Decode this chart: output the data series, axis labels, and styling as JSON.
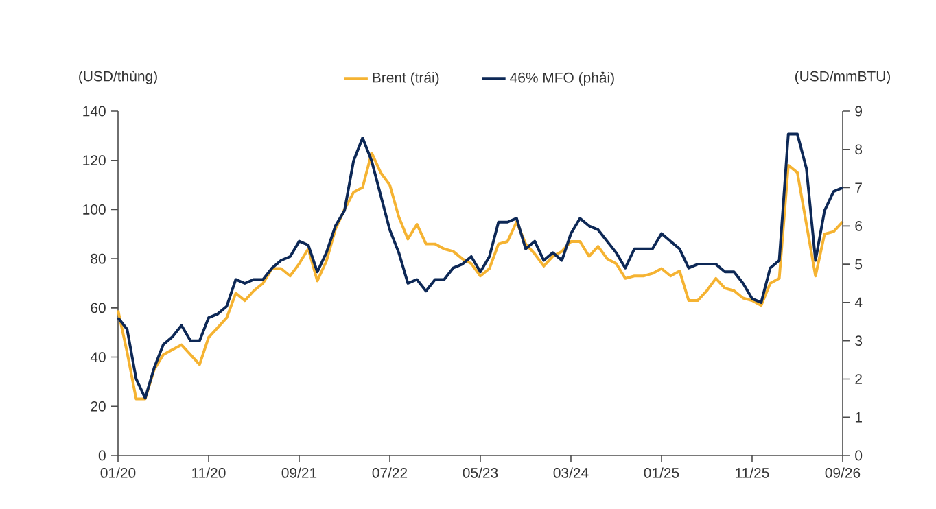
{
  "chart_data": {
    "type": "line",
    "ylabel": "(USD/thùng)",
    "y2label": "(USD/mmBTU)",
    "legend": "top",
    "x": [
      "2020-01",
      "2020-02",
      "2020-03",
      "2020-04",
      "2020-05",
      "2020-06",
      "2020-07",
      "2020-08",
      "2020-09",
      "2020-10",
      "2020-11",
      "2020-12",
      "2021-01",
      "2021-02",
      "2021-03",
      "2021-04",
      "2021-05",
      "2021-06",
      "2021-07",
      "2021-08",
      "2021-09",
      "2021-10",
      "2021-11",
      "2021-12",
      "2022-01",
      "2022-02",
      "2022-03",
      "2022-04",
      "2022-05",
      "2022-06",
      "2022-07",
      "2022-08",
      "2022-09",
      "2022-10",
      "2022-11",
      "2022-12",
      "2023-01",
      "2023-02",
      "2023-03",
      "2023-04",
      "2023-05",
      "2023-06",
      "2023-07",
      "2023-08",
      "2023-09",
      "2023-10",
      "2023-11",
      "2023-12",
      "2024-01",
      "2024-02",
      "2024-03",
      "2024-04",
      "2024-05",
      "2024-06",
      "2024-07",
      "2024-08",
      "2024-09",
      "2024-10",
      "2024-11",
      "2024-12",
      "2025-01",
      "2025-02",
      "2025-03",
      "2025-04",
      "2025-05",
      "2025-06",
      "2025-07",
      "2025-08",
      "2025-09",
      "2025-10",
      "2025-11",
      "2025-12",
      "2026-01",
      "2026-02",
      "2026-03",
      "2026-04",
      "2026-05",
      "2026-06",
      "2026-07",
      "2026-08",
      "2026-09"
    ],
    "series": [
      {
        "name": "Brent (trái)",
        "color": "#f5b332",
        "values": [
          59,
          42,
          23,
          23,
          35,
          41,
          43,
          45,
          41,
          37,
          48,
          52,
          56,
          66,
          63,
          67,
          70,
          76,
          76,
          73,
          78,
          84,
          71,
          79,
          92,
          100,
          107,
          109,
          123,
          115,
          110,
          97,
          88,
          94,
          86,
          86,
          84,
          83,
          80,
          78,
          73,
          76,
          86,
          87,
          95,
          86,
          82,
          77,
          81,
          83,
          87,
          87,
          81,
          85,
          80,
          78,
          72,
          73,
          73,
          74,
          76,
          73,
          75,
          63,
          63,
          67,
          72,
          68,
          67,
          64,
          63,
          61,
          70,
          72,
          118,
          115,
          94,
          73,
          90,
          91,
          95
        ]
      },
      {
        "name": "46% MFO (phải)",
        "color": "#0d2856",
        "axis": "y2",
        "values": [
          3.6,
          3.3,
          2.0,
          1.5,
          2.3,
          2.9,
          3.1,
          3.4,
          3.0,
          3.0,
          3.6,
          3.7,
          3.9,
          4.6,
          4.5,
          4.6,
          4.6,
          4.9,
          5.1,
          5.2,
          5.6,
          5.5,
          4.8,
          5.3,
          6.0,
          6.4,
          7.7,
          8.3,
          7.7,
          6.8,
          5.9,
          5.3,
          4.5,
          4.6,
          4.3,
          4.6,
          4.6,
          4.9,
          5.0,
          5.2,
          4.8,
          5.2,
          6.1,
          6.1,
          6.2,
          5.4,
          5.6,
          5.1,
          5.3,
          5.1,
          5.8,
          6.2,
          6.0,
          5.9,
          5.6,
          5.3,
          4.9,
          5.4,
          5.4,
          5.4,
          5.8,
          5.6,
          5.4,
          4.9,
          5.0,
          5.0,
          5.0,
          4.8,
          4.8,
          4.5,
          4.1,
          4.0,
          4.9,
          5.1,
          8.4,
          8.4,
          7.5,
          5.1,
          6.4,
          6.9,
          7.0
        ]
      }
    ],
    "xlim": [
      "2020-01",
      "2026-09"
    ],
    "xticks": [
      {
        "value": "2020-01",
        "label": "01/20"
      },
      {
        "value": "2020-11",
        "label": "11/20"
      },
      {
        "value": "2021-09",
        "label": "09/21"
      },
      {
        "value": "2022-07",
        "label": "07/22"
      },
      {
        "value": "2023-05",
        "label": "05/23"
      },
      {
        "value": "2024-03",
        "label": "03/24"
      },
      {
        "value": "2025-01",
        "label": "01/25"
      },
      {
        "value": "2025-11",
        "label": "11/25"
      },
      {
        "value": "2026-09",
        "label": "09/26"
      }
    ],
    "ylim": [
      0,
      140
    ],
    "yticks": [
      0,
      20,
      40,
      60,
      80,
      100,
      120,
      140
    ],
    "y2lim": [
      0,
      9
    ],
    "y2ticks": [
      0,
      1,
      2,
      3,
      4,
      5,
      6,
      7,
      8,
      9
    ]
  }
}
